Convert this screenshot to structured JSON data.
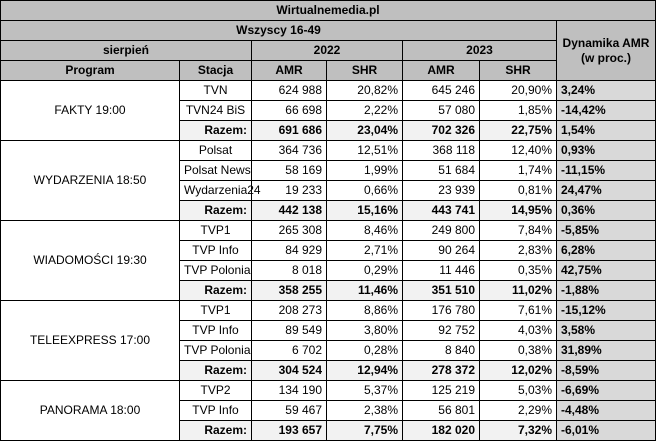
{
  "title": "Wirtualnemedia.pl",
  "subtitle": "Wszyscy 16-49",
  "header": {
    "month": "sierpień",
    "year1": "2022",
    "year2": "2023",
    "dynamics": "Dynamika AMR (w proc.)",
    "program": "Program",
    "station": "Stacja",
    "amr": "AMR",
    "shr": "SHR"
  },
  "groups": [
    {
      "program": "FAKTY 19:00",
      "rows": [
        {
          "station": "TVN",
          "amr22": "624 988",
          "shr22": "20,82%",
          "amr23": "645 246",
          "shr23": "20,90%",
          "dyn": "3,24%"
        },
        {
          "station": "TVN24 BiS",
          "amr22": "66 698",
          "shr22": "2,22%",
          "amr23": "57 080",
          "shr23": "1,85%",
          "dyn": "-14,42%"
        },
        {
          "station": "Razem:",
          "amr22": "691 686",
          "shr22": "23,04%",
          "amr23": "702 326",
          "shr23": "22,75%",
          "dyn": "1,54%"
        }
      ]
    },
    {
      "program": "WYDARZENIA 18:50",
      "rows": [
        {
          "station": "Polsat",
          "amr22": "364 736",
          "shr22": "12,51%",
          "amr23": "368 118",
          "shr23": "12,40%",
          "dyn": "0,93%"
        },
        {
          "station": "Polsat News",
          "amr22": "58 169",
          "shr22": "1,99%",
          "amr23": "51 684",
          "shr23": "1,74%",
          "dyn": "-11,15%"
        },
        {
          "station": "Wydarzenia24",
          "amr22": "19 233",
          "shr22": "0,66%",
          "amr23": "23 939",
          "shr23": "0,81%",
          "dyn": "24,47%"
        },
        {
          "station": "Razem:",
          "amr22": "442 138",
          "shr22": "15,16%",
          "amr23": "443 741",
          "shr23": "14,95%",
          "dyn": "0,36%"
        }
      ]
    },
    {
      "program": "WIADOMOŚCI 19:30",
      "rows": [
        {
          "station": "TVP1",
          "amr22": "265 308",
          "shr22": "8,46%",
          "amr23": "249 800",
          "shr23": "7,84%",
          "dyn": "-5,85%"
        },
        {
          "station": "TVP Info",
          "amr22": "84 929",
          "shr22": "2,71%",
          "amr23": "90 264",
          "shr23": "2,83%",
          "dyn": "6,28%"
        },
        {
          "station": "TVP Polonia",
          "amr22": "8 018",
          "shr22": "0,29%",
          "amr23": "11 446",
          "shr23": "0,35%",
          "dyn": "42,75%"
        },
        {
          "station": "Razem:",
          "amr22": "358 255",
          "shr22": "11,46%",
          "amr23": "351 510",
          "shr23": "11,02%",
          "dyn": "-1,88%"
        }
      ]
    },
    {
      "program": "TELEEXPRESS 17:00",
      "rows": [
        {
          "station": "TVP1",
          "amr22": "208 273",
          "shr22": "8,86%",
          "amr23": "176 780",
          "shr23": "7,61%",
          "dyn": "-15,12%"
        },
        {
          "station": "TVP Info",
          "amr22": "89 549",
          "shr22": "3,80%",
          "amr23": "92 752",
          "shr23": "4,03%",
          "dyn": "3,58%"
        },
        {
          "station": "TVP Polonia",
          "amr22": "6 702",
          "shr22": "0,28%",
          "amr23": "8 840",
          "shr23": "0,38%",
          "dyn": "31,89%"
        },
        {
          "station": "Razem:",
          "amr22": "304 524",
          "shr22": "12,94%",
          "amr23": "278 372",
          "shr23": "12,02%",
          "dyn": "-8,59%"
        }
      ]
    },
    {
      "program": "PANORAMA 18:00",
      "rows": [
        {
          "station": "TVP2",
          "amr22": "134 190",
          "shr22": "5,37%",
          "amr23": "125 219",
          "shr23": "5,03%",
          "dyn": "-6,69%"
        },
        {
          "station": "TVP Info",
          "amr22": "59 467",
          "shr22": "2,38%",
          "amr23": "56 801",
          "shr23": "2,29%",
          "dyn": "-4,48%"
        },
        {
          "station": "Razem:",
          "amr22": "193 657",
          "shr22": "7,75%",
          "amr23": "182 020",
          "shr23": "7,32%",
          "dyn": "-6,01%"
        }
      ]
    }
  ]
}
